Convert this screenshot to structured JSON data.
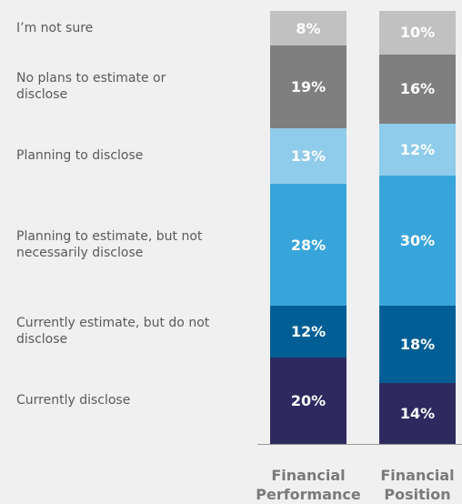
{
  "chart_data": {
    "type": "stacked_bar",
    "categories": [
      "Financial Performance",
      "Financial Position"
    ],
    "ylim": [
      0,
      100
    ],
    "series": [
      {
        "name": "Currently disclose",
        "color": "#2e2a5f",
        "values": [
          20,
          14
        ],
        "value_labels": [
          "20%",
          "14%"
        ]
      },
      {
        "name": "Currently estimate, but do not disclose",
        "color": "#005e95",
        "values": [
          12,
          18
        ],
        "value_labels": [
          "12%",
          "18%"
        ]
      },
      {
        "name": "Planning to estimate, but not necessarily disclose",
        "color": "#38a5da",
        "values": [
          28,
          30
        ],
        "value_labels": [
          "28%",
          "30%"
        ]
      },
      {
        "name": "Planning to disclose",
        "color": "#8fcbea",
        "values": [
          13,
          12
        ],
        "value_labels": [
          "13%",
          "12%"
        ]
      },
      {
        "name": "No plans to estimate or disclose",
        "color": "#7f7f7f",
        "values": [
          19,
          16
        ],
        "value_labels": [
          "19%",
          "16%"
        ]
      },
      {
        "name": "I’m not sure",
        "color": "#c1c1c1",
        "values": [
          8,
          10
        ],
        "value_labels": [
          "8%",
          "10%"
        ]
      }
    ]
  }
}
